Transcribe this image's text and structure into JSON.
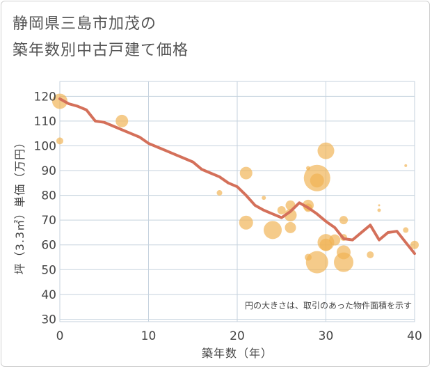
{
  "title_line1": "静岡県三島市加茂の",
  "title_line2": "築年数別中古戸建て価格",
  "chart_data": {
    "type": "scatter+line",
    "xlabel": "築年数（年）",
    "ylabel": "坪（3.3㎡）単価（万円）",
    "xlim": [
      0,
      40
    ],
    "ylim": [
      29,
      126
    ],
    "xticks": [
      0,
      10,
      20,
      30,
      40
    ],
    "yticks": [
      30,
      40,
      50,
      60,
      70,
      80,
      90,
      100,
      110,
      120
    ],
    "annotation": "円の大きさは、取引のあった物件面積を示す",
    "colors": {
      "trend_line": "#d4705a",
      "bubble": "#f0b252",
      "grid": "#c5d2de",
      "axis_text": "#444444"
    },
    "trend_line": {
      "x": [
        0,
        1,
        2,
        3,
        4,
        5,
        6,
        7,
        8,
        9,
        10,
        11,
        12,
        13,
        14,
        15,
        16,
        17,
        18,
        19,
        20,
        21,
        22,
        23,
        24,
        25,
        26,
        27,
        28,
        29,
        30,
        31,
        32,
        33,
        34,
        35,
        36,
        37,
        38,
        39,
        40
      ],
      "y": [
        119,
        117,
        116,
        114.5,
        110,
        109.5,
        108,
        106.5,
        105,
        103.5,
        101,
        99.5,
        98,
        96.5,
        95,
        93.5,
        90.5,
        89,
        87.5,
        85,
        83.5,
        80,
        76,
        74,
        72.5,
        71,
        73.5,
        77,
        75,
        72.5,
        69.5,
        67,
        62.5,
        62,
        65,
        68,
        62,
        65,
        65.5,
        61,
        56.5
      ]
    },
    "bubbles": [
      {
        "x": 0,
        "y": 118,
        "size": 11
      },
      {
        "x": 0,
        "y": 102,
        "size": 5
      },
      {
        "x": 7,
        "y": 110,
        "size": 9
      },
      {
        "x": 18,
        "y": 81,
        "size": 4
      },
      {
        "x": 21,
        "y": 89,
        "size": 9
      },
      {
        "x": 21,
        "y": 69,
        "size": 10
      },
      {
        "x": 23,
        "y": 79,
        "size": 3
      },
      {
        "x": 24,
        "y": 66,
        "size": 13
      },
      {
        "x": 25,
        "y": 74,
        "size": 6
      },
      {
        "x": 26,
        "y": 76,
        "size": 7
      },
      {
        "x": 26,
        "y": 72,
        "size": 9
      },
      {
        "x": 26,
        "y": 67,
        "size": 8
      },
      {
        "x": 28,
        "y": 91,
        "size": 3
      },
      {
        "x": 28,
        "y": 76,
        "size": 8
      },
      {
        "x": 28,
        "y": 75,
        "size": 6
      },
      {
        "x": 28,
        "y": 55,
        "size": 5
      },
      {
        "x": 29,
        "y": 87,
        "size": 19
      },
      {
        "x": 29,
        "y": 86,
        "size": 10
      },
      {
        "x": 29,
        "y": 53,
        "size": 16
      },
      {
        "x": 30,
        "y": 98,
        "size": 12
      },
      {
        "x": 30,
        "y": 61,
        "size": 12
      },
      {
        "x": 30,
        "y": 60,
        "size": 9
      },
      {
        "x": 31,
        "y": 62,
        "size": 8
      },
      {
        "x": 32,
        "y": 70,
        "size": 6
      },
      {
        "x": 32,
        "y": 63,
        "size": 5
      },
      {
        "x": 32,
        "y": 57,
        "size": 10
      },
      {
        "x": 32,
        "y": 53,
        "size": 14
      },
      {
        "x": 35,
        "y": 56,
        "size": 5
      },
      {
        "x": 36,
        "y": 76,
        "size": 1.5
      },
      {
        "x": 36,
        "y": 74,
        "size": 2.5
      },
      {
        "x": 39,
        "y": 92,
        "size": 2
      },
      {
        "x": 39,
        "y": 66,
        "size": 4
      },
      {
        "x": 40,
        "y": 60,
        "size": 6
      }
    ]
  }
}
